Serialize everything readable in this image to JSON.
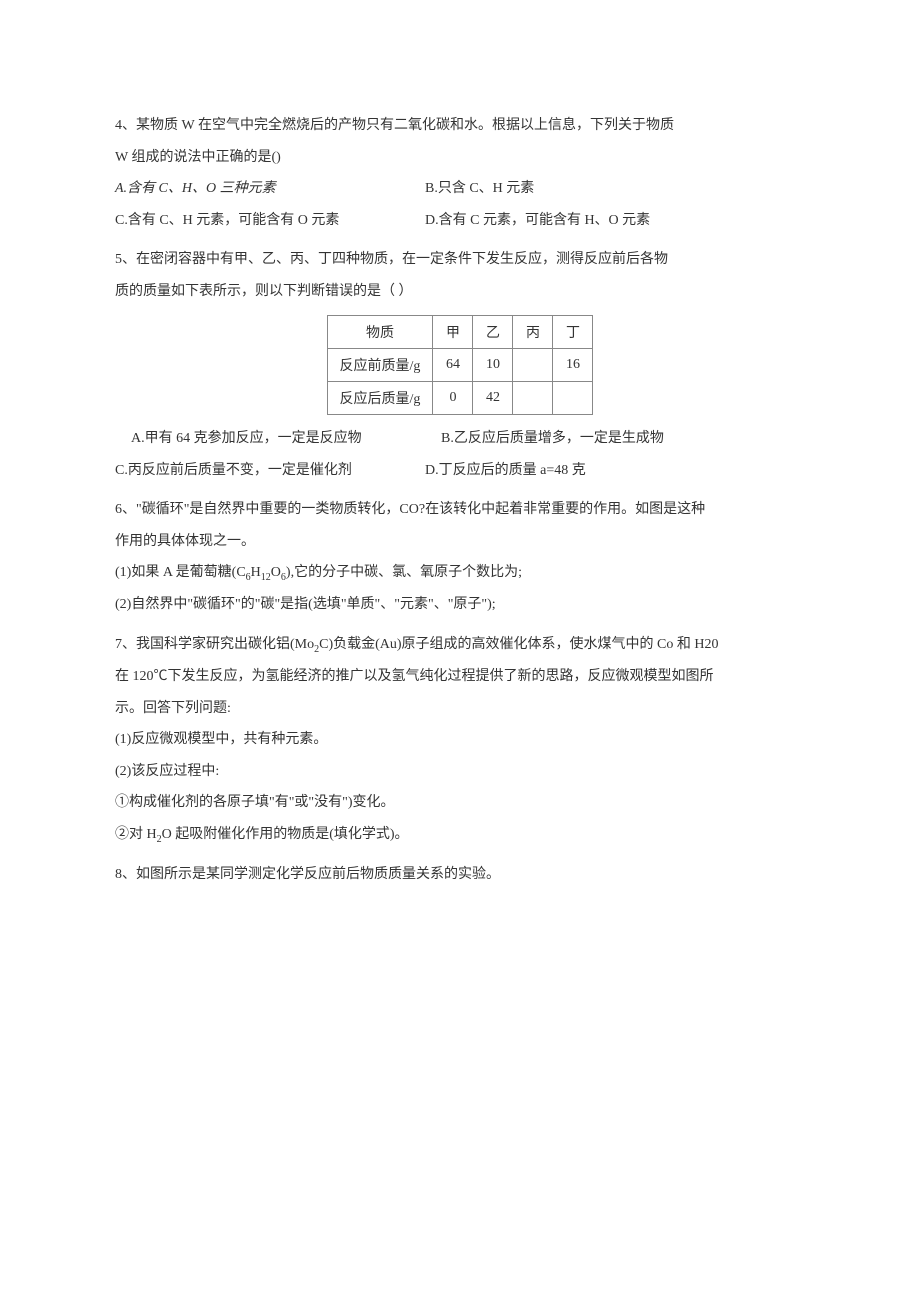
{
  "q4": {
    "stem1": "4、某物质 W 在空气中完全燃烧后的产物只有二氧化碳和水。根据以上信息，下列关于物质",
    "stem2": "W 组成的说法中正确的是()",
    "optA": "A.含有 C、H、O 三种元素",
    "optB": "B.只含 C、H 元素",
    "optC": "C.含有 C、H 元素，可能含有 O 元素",
    "optD": "D.含有 C 元素，可能含有 H、O 元素"
  },
  "q5": {
    "stem1": "5、在密闭容器中有甲、乙、丙、丁四种物质，在一定条件下发生反应，测得反应前后各物",
    "stem2": "质的质量如下表所示，则以下判断错误的是（    ）",
    "table": {
      "header": [
        "物质",
        "甲",
        "乙",
        "丙",
        "丁"
      ],
      "row1": [
        "反应前质量/g",
        "64",
        "10",
        "",
        "16"
      ],
      "row2": [
        "反应后质量/g",
        "0",
        "42",
        "",
        ""
      ]
    },
    "optA": "A.甲有 64 克参加反应，一定是反应物",
    "optB": "B.乙反应后质量增多，一定是生成物",
    "optC": "C.丙反应前后质量不变，一定是催化剂",
    "optD": "D.丁反应后的质量 a=48 克"
  },
  "q6": {
    "stem1": "6、\"碳循环\"是自然界中重要的一类物质转化，CO?在该转化中起着非常重要的作用。如图是这种",
    "stem2": "作用的具体体现之一。",
    "sub1_pre": "(1)如果 A 是葡萄糖(C",
    "sub1_f1": "6",
    "sub1_h": "H",
    "sub1_f2": "12",
    "sub1_o": "O",
    "sub1_f3": "6",
    "sub1_post": "),它的分子中碳、氯、氧原子个数比为;",
    "sub2": "(2)自然界中\"碳循环\"的\"碳\"是指(选填\"单质\"、\"元素\"、\"原子\");"
  },
  "q7": {
    "stem1_pre": "7、我国科学家研究出碳化铝(Mo",
    "stem1_s": "2",
    "stem1_post": "C)负载金(Au)原子组成的高效催化体系，使水煤气中的 Co 和 H20",
    "stem2": "在 120℃下发生反应，为氢能经济的推广以及氢气纯化过程提供了新的思路，反应微观模型如图所",
    "stem3": "示。回答下列问题:",
    "sub1": "(1)反应微观模型中，共有种元素。",
    "sub2": "(2)该反应过程中:",
    "sub2a": "①构成催化剂的各原子填\"有\"或\"没有\")变化。",
    "sub2b_pre": "②对 H",
    "sub2b_s": "2",
    "sub2b_post": "O 起吸附催化作用的物质是(填化学式)。"
  },
  "q8": {
    "stem": "8、如图所示是某同学测定化学反应前后物质质量关系的实验。"
  },
  "style": {
    "bg": "#ffffff",
    "text_color": "#333333",
    "border_color": "#888888",
    "font_size": 14,
    "line_height": 2.25
  }
}
